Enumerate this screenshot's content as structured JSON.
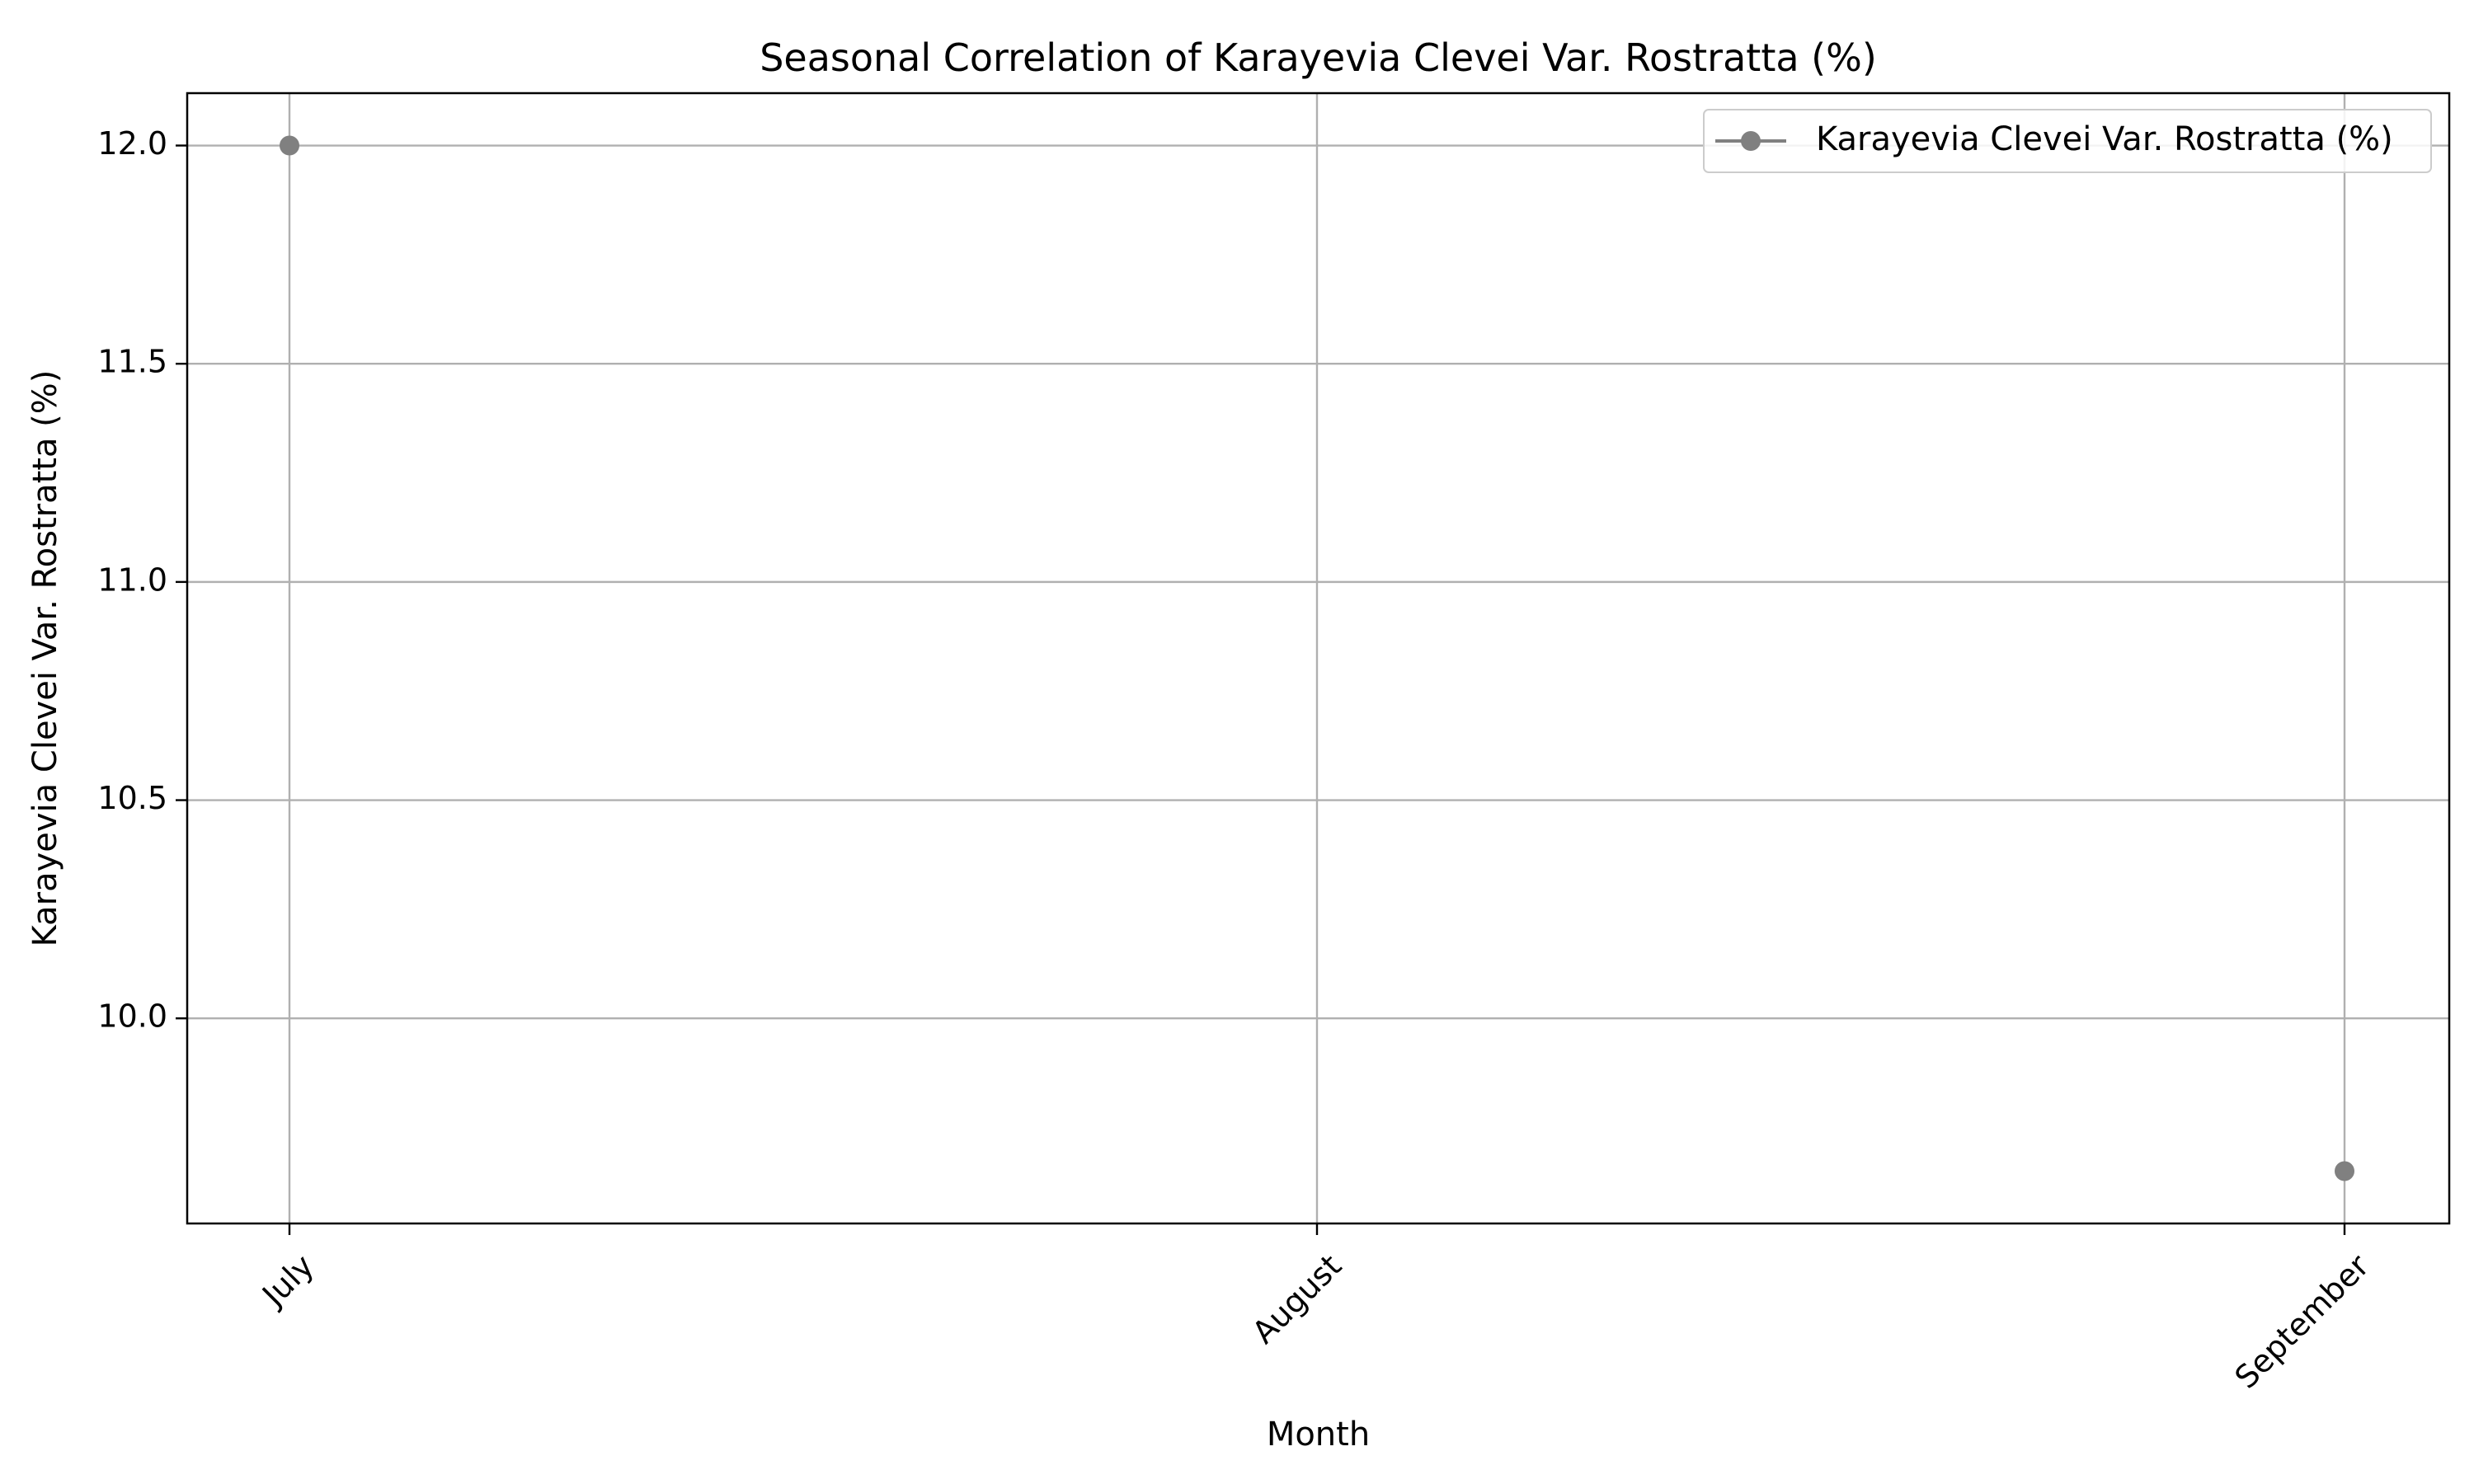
{
  "chart_data": {
    "type": "line",
    "title": "Seasonal Correlation of Karayevia Clevei Var. Rostratta (%)",
    "xlabel": "Month",
    "ylabel": "Karayevia Clevei Var. Rostratta (%)",
    "categories": [
      "July",
      "August",
      "September"
    ],
    "series": [
      {
        "name": "Karayevia Clevei Var. Rostratta (%)",
        "values": [
          12.0,
          null,
          9.65
        ],
        "color": "#808080",
        "marker": "circle"
      }
    ],
    "ylim": [
      9.53,
      12.12
    ],
    "yticks": [
      {
        "value": 10.0,
        "label": "10.0"
      },
      {
        "value": 10.5,
        "label": "10.5"
      },
      {
        "value": 11.0,
        "label": "11.0"
      },
      {
        "value": 11.5,
        "label": "11.5"
      },
      {
        "value": 12.0,
        "label": "12.0"
      }
    ],
    "grid": true,
    "legend_position": "top-right",
    "x_tick_rotation": 45
  }
}
